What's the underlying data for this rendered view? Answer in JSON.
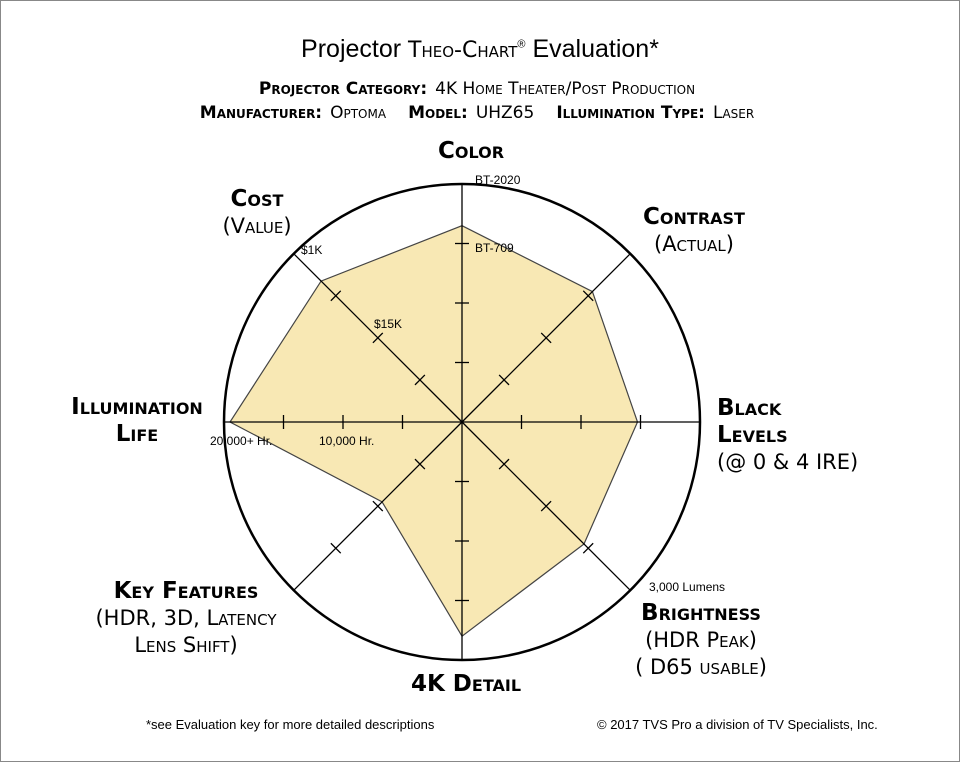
{
  "chart_data": {
    "type": "radar",
    "title_parts": [
      "Projector",
      "Theo-Chart",
      "®",
      "Evaluation*"
    ],
    "header": [
      [
        {
          "label": "Projector Category:",
          "value": "4K Home Theater/Post Production"
        }
      ],
      [
        {
          "label": "Manufacturer:",
          "value": "Optoma"
        },
        {
          "label": "Model:",
          "value": "UHZ65"
        },
        {
          "label": "Illumination Type:",
          "value": "Laser"
        }
      ]
    ],
    "categories": [
      "Color",
      "Contrast",
      "Black Levels",
      "Brightness",
      "4K Detail",
      "Key Features",
      "Illumination Life",
      "Cost"
    ],
    "category_notes": [
      [],
      [
        "(Actual)"
      ],
      [
        "(@ 0 & 4 IRE)"
      ],
      [
        "(HDR Peak)",
        "( D65 usable)"
      ],
      [],
      [
        "(HDR, 3D, Latency",
        "Lens Shift)"
      ],
      [],
      [
        "(Value)"
      ]
    ],
    "axis_labels": [
      "BT-2020",
      "BT-709",
      "$1K",
      "$15K",
      "20,000+ Hr.",
      "10,000 Hr.",
      "3,000 Lumens"
    ],
    "values": [
      3.3,
      3.1,
      2.95,
      2.9,
      3.6,
      1.9,
      3.9,
      3.35
    ],
    "color": "#f8e8b4",
    "rlim": [
      0,
      4
    ],
    "rticks": [
      1,
      2,
      3,
      4
    ],
    "footnote": "*see Evaluation key for more detailed descriptions",
    "copyright": "© 2017 TVS Pro a division of TV Specialists, Inc."
  }
}
